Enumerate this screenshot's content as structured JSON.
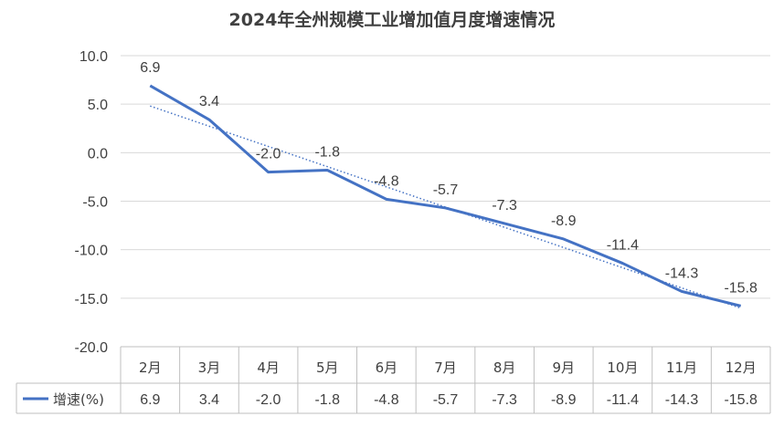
{
  "chart_data": {
    "type": "line",
    "title": "2024年全州规模工业增加值月度增速情况",
    "categories": [
      "2月",
      "3月",
      "4月",
      "5月",
      "6月",
      "7月",
      "8月",
      "9月",
      "10月",
      "11月",
      "12月"
    ],
    "series": [
      {
        "name": "增速(%)",
        "values": [
          6.9,
          3.4,
          -2.0,
          -1.8,
          -4.8,
          -5.7,
          -7.3,
          -8.9,
          -11.4,
          -14.3,
          -15.8
        ],
        "data_labels": [
          "6.9",
          "3.4",
          "-2.0",
          "-1.8",
          "-4.8",
          "-5.7",
          "-7.3",
          "-8.9",
          "-11.4",
          "-14.3",
          "-15.8"
        ],
        "color": "#4472C4"
      }
    ],
    "trendline": {
      "type": "linear",
      "style": "dotted",
      "color": "#4472C4"
    },
    "ylim": [
      -20,
      10
    ],
    "yticks": [
      "10.0",
      "5.0",
      "0.0",
      "-5.0",
      "-10.0",
      "-15.0",
      "-20.0"
    ],
    "grid": true,
    "legend": "data-table",
    "data_table": true
  }
}
